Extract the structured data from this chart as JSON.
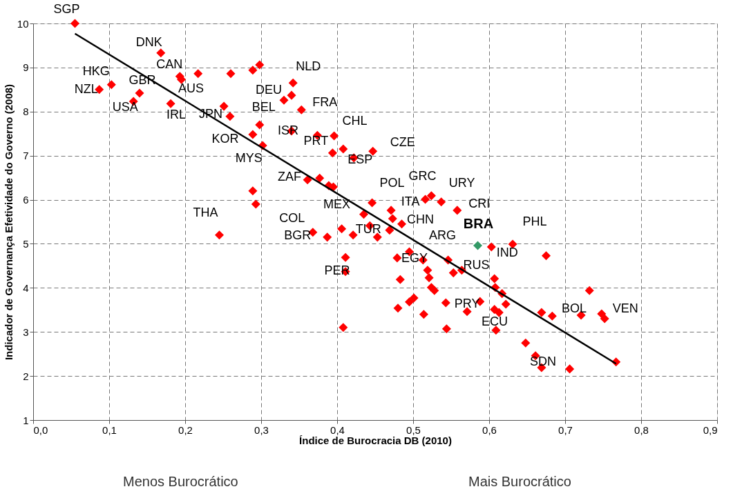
{
  "chart_data": {
    "type": "scatter",
    "xlabel": "Índice de Burocracia DB (2010)",
    "ylabel": "Indicador de Governança Efetividade do Governo (2008)",
    "xlim": [
      0,
      0.9
    ],
    "ylim": [
      1,
      10
    ],
    "xticks": [
      {
        "value": 0,
        "label": "0,0"
      },
      {
        "value": 0.1,
        "label": "0,1"
      },
      {
        "value": 0.2,
        "label": "0,2"
      },
      {
        "value": 0.3,
        "label": "0,3"
      },
      {
        "value": 0.4,
        "label": "0,4"
      },
      {
        "value": 0.5,
        "label": "0,5"
      },
      {
        "value": 0.6,
        "label": "0,6"
      },
      {
        "value": 0.7,
        "label": "0,7"
      },
      {
        "value": 0.8,
        "label": "0,8"
      },
      {
        "value": 0.9,
        "label": "0,9"
      }
    ],
    "yticks": [
      1,
      2,
      3,
      4,
      5,
      6,
      7,
      8,
      9,
      10
    ],
    "grid": true,
    "series": [
      {
        "marker": "diamond",
        "color": "#ff0000",
        "x": [
          0.055,
          0.168,
          0.193,
          0.195,
          0.217,
          0.103,
          0.087,
          0.14,
          0.132,
          0.181,
          0.251,
          0.259,
          0.26,
          0.289,
          0.298,
          0.342,
          0.34,
          0.33,
          0.353,
          0.298,
          0.289,
          0.302,
          0.34,
          0.374,
          0.396,
          0.394,
          0.408,
          0.422,
          0.447,
          0.361,
          0.377,
          0.389,
          0.395,
          0.289,
          0.293,
          0.446,
          0.435,
          0.471,
          0.473,
          0.485,
          0.469,
          0.453,
          0.443,
          0.516,
          0.524,
          0.537,
          0.558,
          0.603,
          0.631,
          0.675,
          0.495,
          0.479,
          0.513,
          0.546,
          0.519,
          0.521,
          0.553,
          0.564,
          0.483,
          0.524,
          0.528,
          0.607,
          0.608,
          0.617,
          0.622,
          0.732,
          0.501,
          0.495,
          0.48,
          0.543,
          0.588,
          0.571,
          0.514,
          0.607,
          0.613,
          0.669,
          0.683,
          0.721,
          0.748,
          0.752,
          0.544,
          0.609,
          0.648,
          0.661,
          0.669,
          0.706,
          0.767,
          0.411,
          0.411,
          0.408,
          0.245,
          0.406,
          0.421,
          0.368,
          0.387
        ],
        "values": [
          10.0,
          9.33,
          8.8,
          8.73,
          8.86,
          8.61,
          8.5,
          8.42,
          8.23,
          8.18,
          8.12,
          7.89,
          8.86,
          8.94,
          9.06,
          8.65,
          8.37,
          8.26,
          8.04,
          7.7,
          7.48,
          7.23,
          7.56,
          7.46,
          7.45,
          7.06,
          7.15,
          6.95,
          7.1,
          6.45,
          6.49,
          6.32,
          6.29,
          6.2,
          5.9,
          5.93,
          5.67,
          5.76,
          5.57,
          5.45,
          5.31,
          5.15,
          5.41,
          6.01,
          6.09,
          5.95,
          5.76,
          4.93,
          4.99,
          4.73,
          4.82,
          4.68,
          4.63,
          4.63,
          4.4,
          4.23,
          4.34,
          4.4,
          4.19,
          4.01,
          3.94,
          4.21,
          4.01,
          3.87,
          3.63,
          3.94,
          3.77,
          3.68,
          3.54,
          3.66,
          3.69,
          3.46,
          3.4,
          3.51,
          3.44,
          3.44,
          3.36,
          3.38,
          3.41,
          3.3,
          3.07,
          3.04,
          2.75,
          2.46,
          2.19,
          2.16,
          2.32,
          4.69,
          4.37,
          3.1,
          5.2,
          5.34,
          5.2,
          5.26,
          5.15
        ],
        "value_labels": [
          "SGP",
          "DNK",
          "CAN",
          "AUS",
          null,
          "HKG",
          "NZL",
          "GBR",
          "USA",
          "IRL",
          null,
          "JPN",
          null,
          null,
          null,
          "NLD",
          "DEU",
          null,
          "FRA",
          "BEL",
          "KOR",
          "MYS",
          "ISR",
          "PRT",
          "CHL",
          null,
          null,
          "ESP",
          "CZE",
          "ZAF",
          null,
          null,
          null,
          null,
          null,
          "POL",
          "MEX",
          "ITA",
          null,
          "CHN",
          null,
          "TUR",
          null,
          "GRC",
          null,
          "URY",
          "CRI",
          "IND",
          "PHL",
          null,
          null,
          "EGY",
          null,
          "ARG",
          null,
          null,
          null,
          "RUS",
          null,
          null,
          null,
          null,
          null,
          null,
          null,
          null,
          null,
          null,
          null,
          null,
          null,
          "PRY",
          null,
          null,
          null,
          null,
          null,
          "BOL",
          null,
          "VEN",
          null,
          "ECU",
          null,
          null,
          "SDN",
          null,
          null,
          null,
          "PER",
          null,
          "THA",
          null,
          null,
          "COL",
          "BGR"
        ]
      },
      {
        "marker": "diamond",
        "color": "#339966",
        "x": [
          0.585
        ],
        "values": [
          4.96
        ],
        "value_labels": [
          "BRA"
        ]
      },
      {
        "type": "line",
        "color": "#000000",
        "x": [
          0.055,
          0.767
        ],
        "values": [
          9.77,
          2.28
        ]
      }
    ],
    "annotations": [
      "Menos Burocrático",
      "Mais Burocrático"
    ]
  }
}
